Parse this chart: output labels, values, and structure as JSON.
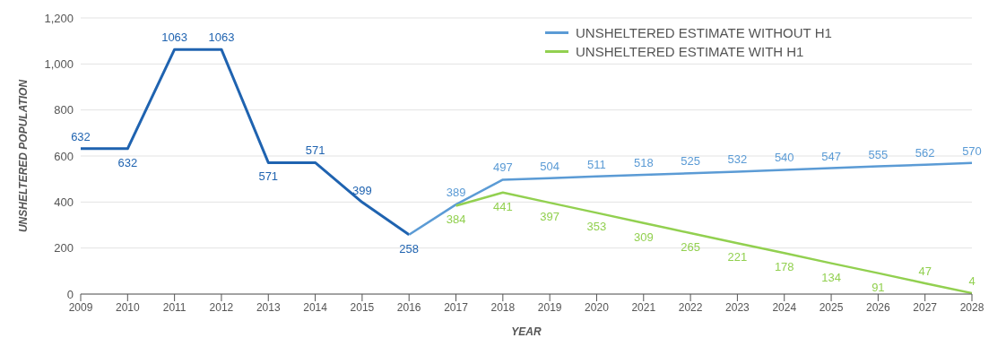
{
  "chart_data": {
    "type": "line",
    "xlabel": "YEAR",
    "ylabel": "UNSHELTERED POPULATION",
    "xlim": [
      2009,
      2028
    ],
    "xticks": [
      2009,
      2010,
      2011,
      2012,
      2013,
      2014,
      2015,
      2016,
      2017,
      2018,
      2019,
      2020,
      2021,
      2022,
      2023,
      2024,
      2025,
      2026,
      2027,
      2028
    ],
    "ylim": [
      0,
      1200
    ],
    "yticks": [
      0,
      200,
      400,
      600,
      800,
      {
        "value": 1000,
        "label": "1,000"
      },
      {
        "value": 1200,
        "label": "1,200"
      }
    ],
    "grid": "y",
    "legend": "top right",
    "marker": "none",
    "line_style": "solid",
    "series": [
      {
        "color": "#1f63b0",
        "x": [
          2009,
          2010,
          2011,
          2012,
          2013,
          2014,
          2015,
          2016
        ],
        "values": [
          632,
          632,
          1063,
          1063,
          571,
          571,
          399,
          258
        ],
        "value_labels": [
          "632",
          "632",
          "1063",
          "1063",
          "571",
          "571",
          "399",
          "258"
        ]
      },
      {
        "name": "UNSHELTERED ESTIMATE WITHOUT H1",
        "color": "#5b9bd5",
        "x": [
          2016,
          2017,
          2018,
          2019,
          2020,
          2021,
          2022,
          2023,
          2024,
          2025,
          2026,
          2027,
          2028
        ],
        "values": [
          258,
          389,
          497,
          504,
          511,
          518,
          525,
          532,
          540,
          547,
          555,
          562,
          570
        ],
        "value_labels": [
          null,
          "389",
          "497",
          "504",
          "511",
          "518",
          "525",
          "532",
          "540",
          "547",
          "555",
          "562",
          "570"
        ]
      },
      {
        "name": "UNSHELTERED ESTIMATE WITH H1",
        "color": "#92d050",
        "x": [
          2017,
          2018,
          2019,
          2020,
          2021,
          2022,
          2023,
          2024,
          2025,
          2026,
          2027,
          2028
        ],
        "values": [
          384,
          441,
          397,
          353,
          309,
          265,
          221,
          178,
          134,
          91,
          47,
          4
        ],
        "value_labels": [
          "384",
          "441",
          "397",
          "353",
          "309",
          "265",
          "221",
          "178",
          "134",
          "91",
          "47",
          "4"
        ]
      }
    ]
  }
}
